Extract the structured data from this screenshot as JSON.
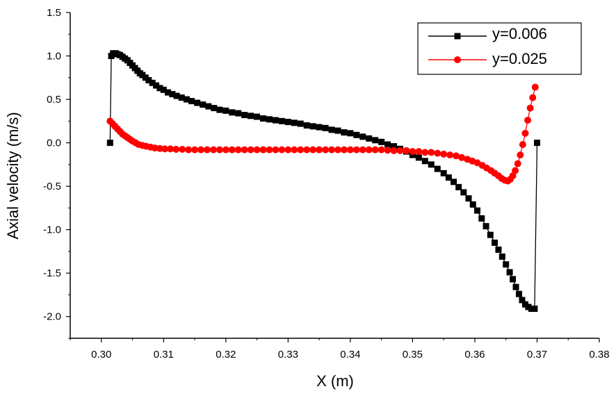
{
  "chart_data": {
    "type": "line",
    "xlabel": "X (m)",
    "ylabel": "Axial velocity (m/s)",
    "xlim": [
      0.295,
      0.38
    ],
    "ylim": [
      -2.25,
      1.5
    ],
    "xticks": [
      0.3,
      0.31,
      0.32,
      0.33,
      0.34,
      0.35,
      0.36,
      0.37,
      0.38
    ],
    "xtick_labels": [
      "0.30",
      "0.31",
      "0.32",
      "0.33",
      "0.34",
      "0.35",
      "0.36",
      "0.37",
      "0.38"
    ],
    "yticks": [
      1.5,
      1.0,
      0.5,
      0.0,
      -0.5,
      -1.0,
      -1.5,
      -2.0
    ],
    "ytick_labels": [
      "1.5",
      "1.0",
      "0.5",
      "0.0",
      "-0.5",
      "-1.0",
      "-1.5",
      "-2.0"
    ],
    "grid": false,
    "legend_position": "top-right",
    "series": [
      {
        "name": "y=0.006",
        "color": "#000000",
        "marker": "square",
        "x": [
          0.3014,
          0.3016,
          0.3019,
          0.3023,
          0.3026,
          0.303,
          0.3034,
          0.3038,
          0.3042,
          0.3046,
          0.305,
          0.3054,
          0.3058,
          0.3062,
          0.3066,
          0.3071,
          0.3076,
          0.3082,
          0.3088,
          0.3094,
          0.31,
          0.3107,
          0.3114,
          0.3121,
          0.3129,
          0.3137,
          0.3145,
          0.3154,
          0.3163,
          0.3172,
          0.3181,
          0.319,
          0.32,
          0.321,
          0.322,
          0.323,
          0.324,
          0.325,
          0.326,
          0.327,
          0.328,
          0.329,
          0.33,
          0.331,
          0.332,
          0.333,
          0.334,
          0.335,
          0.336,
          0.337,
          0.338,
          0.339,
          0.34,
          0.341,
          0.342,
          0.343,
          0.344,
          0.345,
          0.346,
          0.347,
          0.348,
          0.349,
          0.35,
          0.351,
          0.352,
          0.353,
          0.354,
          0.355,
          0.3558,
          0.3566,
          0.3574,
          0.3582,
          0.359,
          0.3597,
          0.3604,
          0.3611,
          0.3618,
          0.3625,
          0.3632,
          0.3638,
          0.3644,
          0.365,
          0.3656,
          0.3661,
          0.3666,
          0.3671,
          0.3676,
          0.3681,
          0.3686,
          0.3691,
          0.3696,
          0.37
        ],
        "y": [
          0.0,
          1.0,
          1.03,
          1.03,
          1.02,
          1.01,
          0.99,
          0.97,
          0.95,
          0.92,
          0.89,
          0.86,
          0.83,
          0.8,
          0.78,
          0.75,
          0.72,
          0.69,
          0.66,
          0.63,
          0.61,
          0.58,
          0.56,
          0.54,
          0.52,
          0.5,
          0.48,
          0.46,
          0.44,
          0.42,
          0.4,
          0.38,
          0.37,
          0.35,
          0.34,
          0.32,
          0.31,
          0.3,
          0.28,
          0.27,
          0.26,
          0.25,
          0.24,
          0.23,
          0.22,
          0.2,
          0.19,
          0.18,
          0.17,
          0.15,
          0.14,
          0.12,
          0.11,
          0.09,
          0.07,
          0.05,
          0.03,
          0.01,
          -0.02,
          -0.04,
          -0.07,
          -0.1,
          -0.14,
          -0.17,
          -0.21,
          -0.25,
          -0.3,
          -0.35,
          -0.4,
          -0.45,
          -0.51,
          -0.57,
          -0.64,
          -0.71,
          -0.78,
          -0.87,
          -0.96,
          -1.06,
          -1.15,
          -1.23,
          -1.31,
          -1.4,
          -1.49,
          -1.57,
          -1.66,
          -1.74,
          -1.81,
          -1.86,
          -1.89,
          -1.91,
          -1.91,
          0.0
        ]
      },
      {
        "name": "y=0.025",
        "color": "#ff0000",
        "marker": "circle",
        "x": [
          0.3014,
          0.3018,
          0.3022,
          0.3026,
          0.303,
          0.3034,
          0.3038,
          0.3042,
          0.3046,
          0.305,
          0.3055,
          0.306,
          0.3066,
          0.3072,
          0.3079,
          0.3086,
          0.3094,
          0.3102,
          0.3111,
          0.312,
          0.313,
          0.314,
          0.315,
          0.316,
          0.317,
          0.318,
          0.319,
          0.32,
          0.321,
          0.322,
          0.323,
          0.324,
          0.325,
          0.326,
          0.327,
          0.328,
          0.329,
          0.33,
          0.331,
          0.332,
          0.333,
          0.334,
          0.335,
          0.336,
          0.337,
          0.338,
          0.339,
          0.34,
          0.341,
          0.342,
          0.343,
          0.344,
          0.345,
          0.346,
          0.347,
          0.348,
          0.349,
          0.35,
          0.351,
          0.352,
          0.353,
          0.354,
          0.355,
          0.356,
          0.357,
          0.3579,
          0.3588,
          0.3596,
          0.3604,
          0.3612,
          0.3619,
          0.3626,
          0.3632,
          0.3638,
          0.3643,
          0.3648,
          0.3653,
          0.3657,
          0.3661,
          0.3665,
          0.3669,
          0.3673,
          0.3677,
          0.3681,
          0.3685,
          0.3689,
          0.3693,
          0.3697
        ],
        "y": [
          0.25,
          0.22,
          0.19,
          0.16,
          0.13,
          0.1,
          0.08,
          0.06,
          0.04,
          0.02,
          0.0,
          -0.02,
          -0.03,
          -0.04,
          -0.05,
          -0.06,
          -0.065,
          -0.07,
          -0.07,
          -0.075,
          -0.075,
          -0.08,
          -0.08,
          -0.08,
          -0.08,
          -0.08,
          -0.08,
          -0.08,
          -0.08,
          -0.08,
          -0.08,
          -0.08,
          -0.08,
          -0.08,
          -0.08,
          -0.08,
          -0.08,
          -0.08,
          -0.08,
          -0.08,
          -0.08,
          -0.08,
          -0.08,
          -0.08,
          -0.08,
          -0.08,
          -0.08,
          -0.08,
          -0.08,
          -0.08,
          -0.08,
          -0.08,
          -0.08,
          -0.085,
          -0.09,
          -0.09,
          -0.09,
          -0.1,
          -0.1,
          -0.11,
          -0.11,
          -0.12,
          -0.13,
          -0.14,
          -0.15,
          -0.17,
          -0.19,
          -0.21,
          -0.23,
          -0.26,
          -0.29,
          -0.32,
          -0.35,
          -0.38,
          -0.41,
          -0.43,
          -0.44,
          -0.42,
          -0.38,
          -0.32,
          -0.24,
          -0.14,
          -0.02,
          0.11,
          0.26,
          0.4,
          0.52,
          0.64
        ]
      }
    ]
  }
}
